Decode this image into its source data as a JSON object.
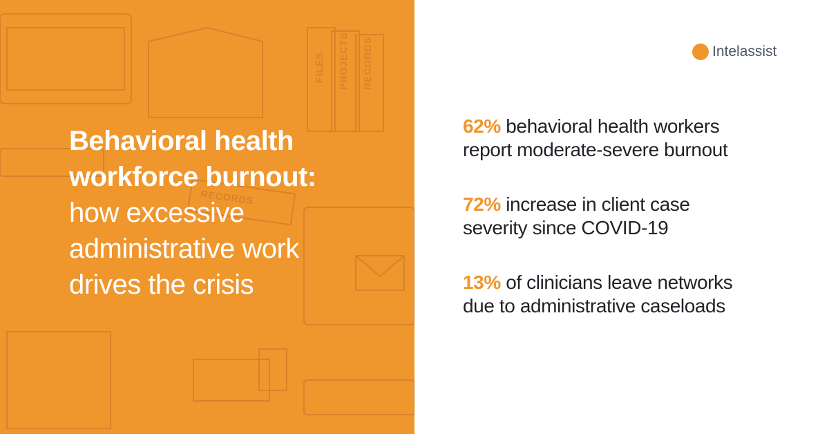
{
  "logo": {
    "text": "Intelassist"
  },
  "headline": {
    "bold": [
      "Behavioral health",
      "workforce burnout:"
    ],
    "regular": [
      "how excessive",
      "administrative work",
      "drives the crisis"
    ]
  },
  "stats": [
    {
      "highlight": "62%",
      "lines": [
        "behavioral health workers",
        "report moderate-severe burnout"
      ]
    },
    {
      "highlight": "72%",
      "lines": [
        "increase in client case",
        "severity since COVID-19"
      ]
    },
    {
      "highlight": "13%",
      "lines": [
        "of clinicians leave networks",
        "due to administrative caseloads"
      ]
    }
  ],
  "background": {
    "labels": [
      "FILES",
      "PROJECTS",
      "RECORDS",
      "RECORDS"
    ]
  }
}
